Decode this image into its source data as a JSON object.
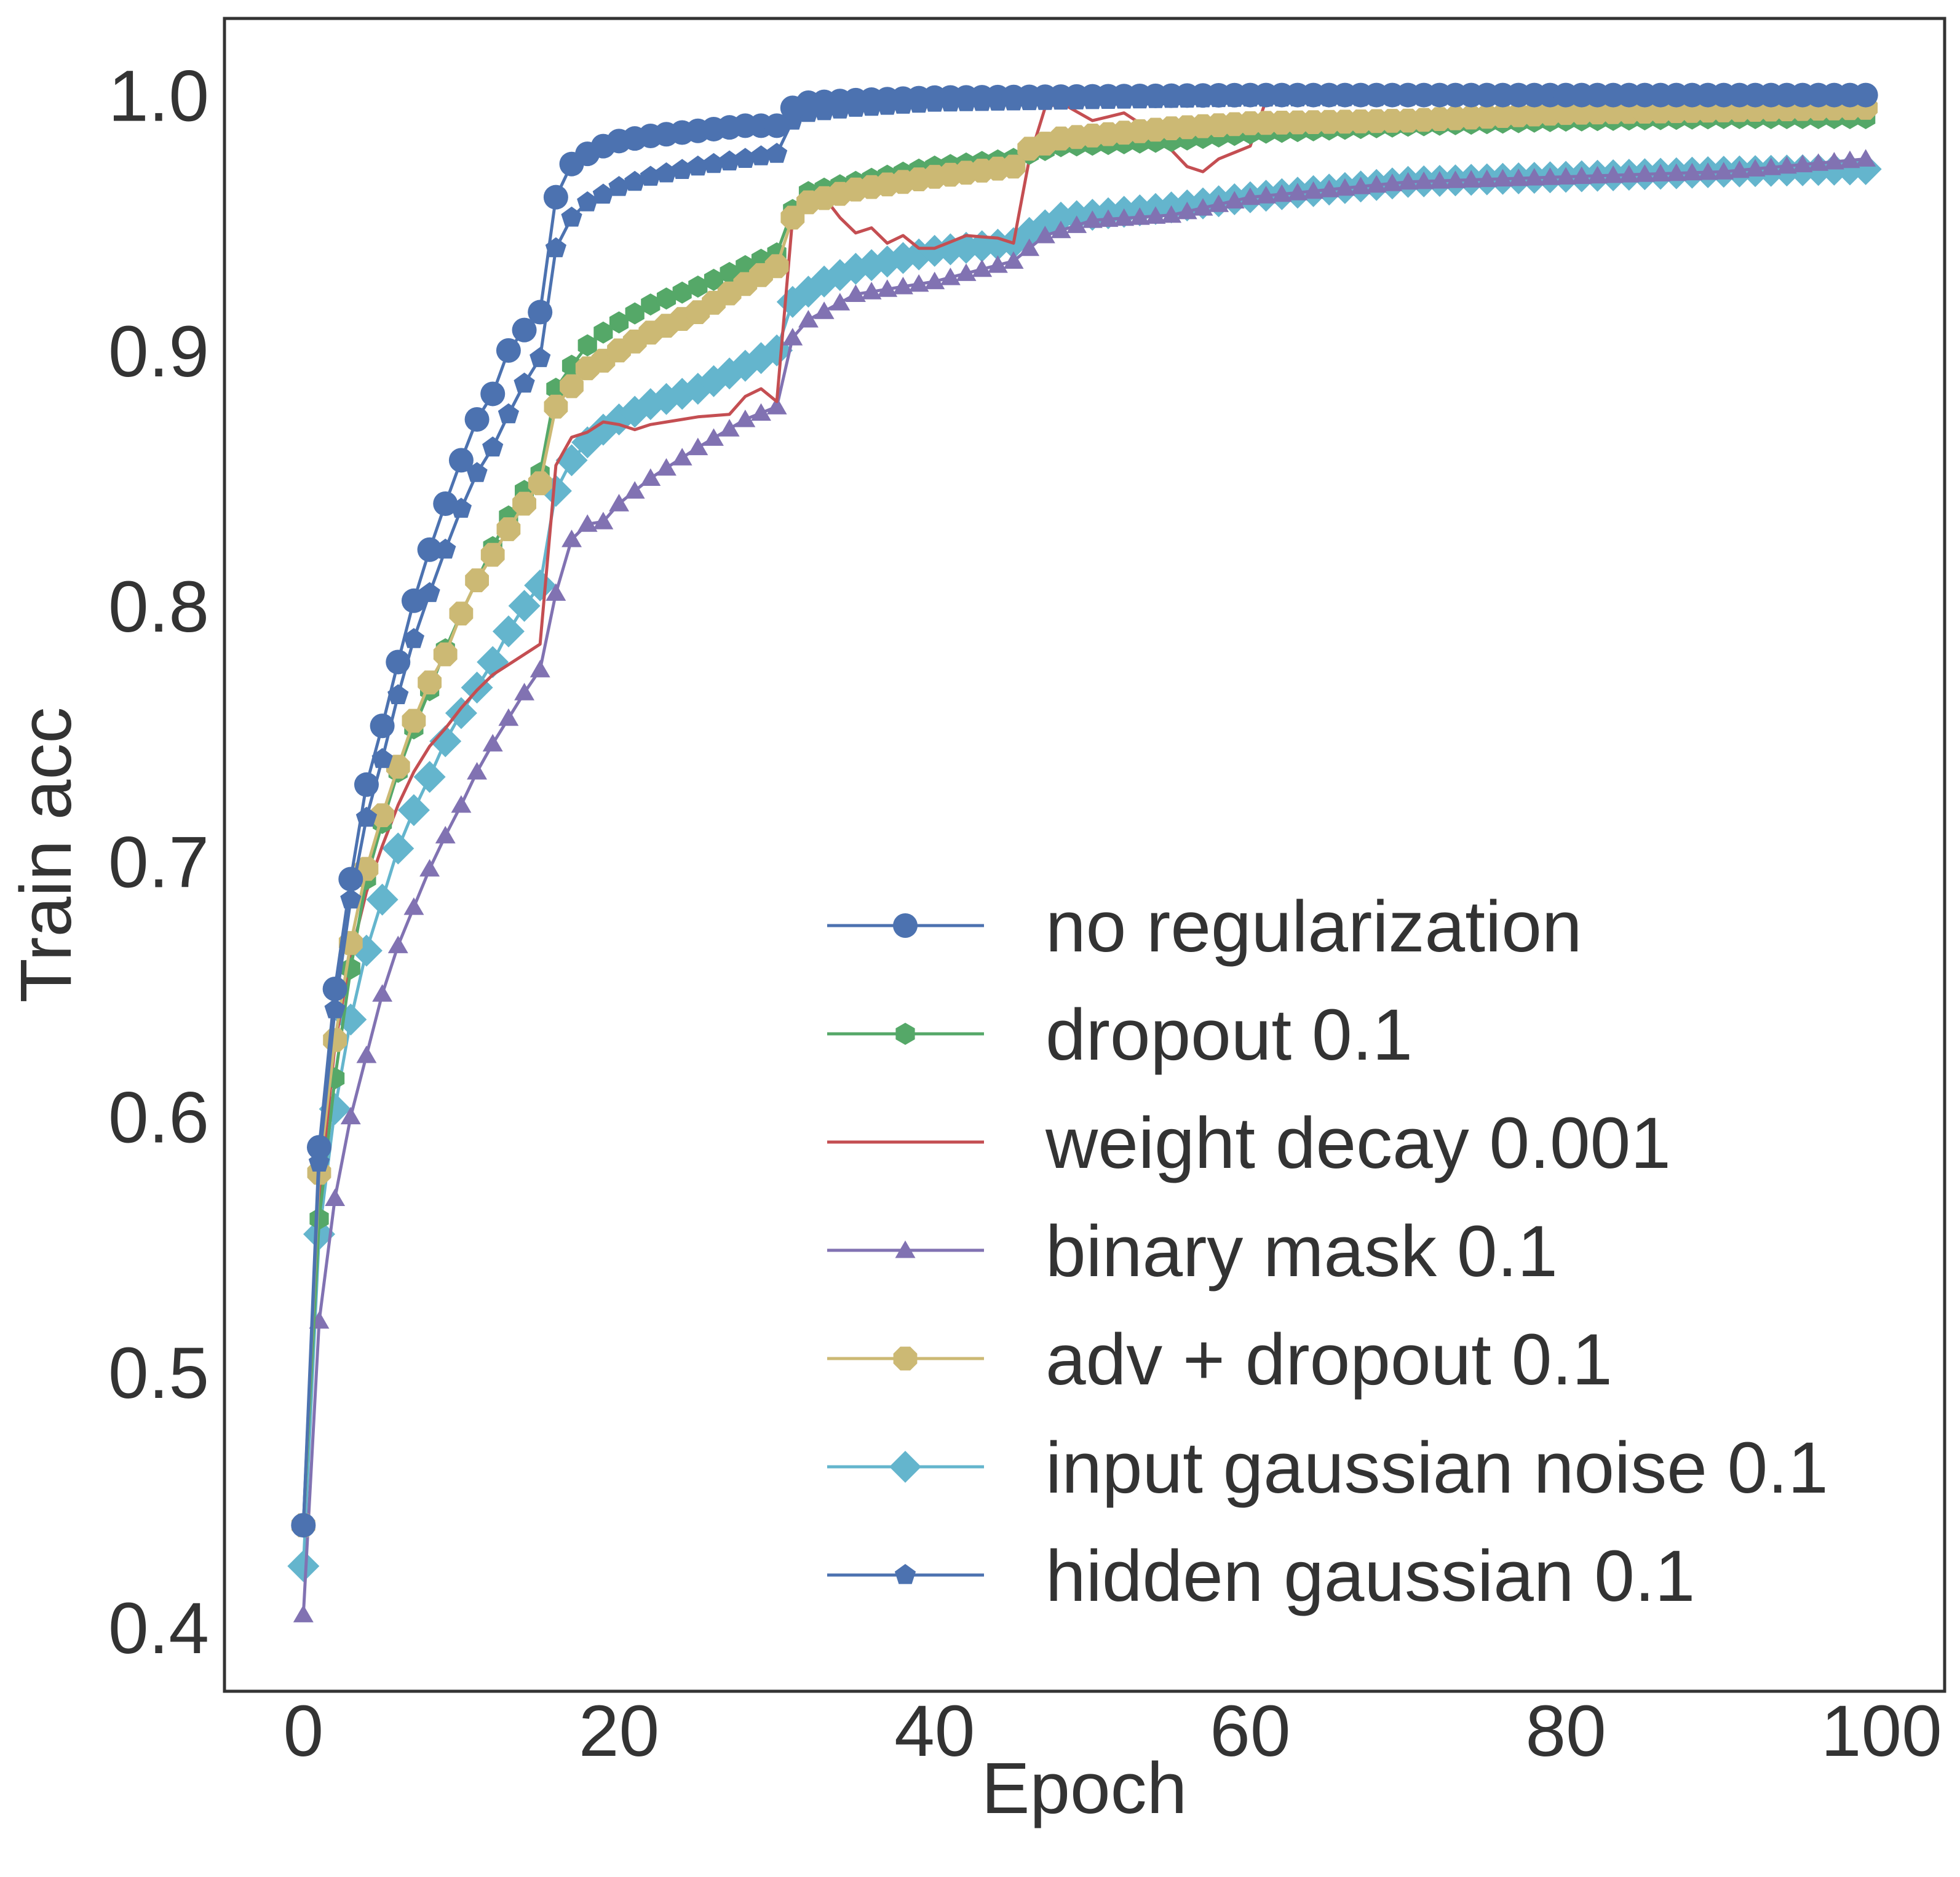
{
  "chart_data": {
    "type": "line",
    "title": "",
    "xlabel": "Epoch",
    "ylabel": "Train acc",
    "xlim": [
      -5,
      104
    ],
    "ylim": [
      0.375,
      1.03
    ],
    "xticks": [
      0,
      20,
      40,
      60,
      80,
      100
    ],
    "yticks": [
      0.4,
      0.5,
      0.6,
      0.7,
      0.8,
      0.9,
      1.0
    ],
    "xtick_labels": [
      "0",
      "20",
      "40",
      "60",
      "80",
      "100"
    ],
    "ytick_labels": [
      "0.4",
      "0.5",
      "0.6",
      "0.7",
      "0.8",
      "0.9",
      "1.0"
    ],
    "grid": false,
    "legend_position": "lower-right",
    "series": [
      {
        "name": "input gaussian noise 0.1",
        "color": "#64b5cd",
        "marker": "diamond",
        "key": "ign",
        "anchors": [
          [
            0,
            0.424
          ],
          [
            1,
            0.554
          ],
          [
            2,
            0.603
          ],
          [
            3,
            0.638
          ],
          [
            4,
            0.665
          ],
          [
            5,
            0.685
          ],
          [
            6,
            0.705
          ],
          [
            7,
            0.72
          ],
          [
            8,
            0.733
          ],
          [
            9,
            0.747
          ],
          [
            10,
            0.758
          ],
          [
            11,
            0.768
          ],
          [
            12,
            0.778
          ],
          [
            13,
            0.79
          ],
          [
            14,
            0.8
          ],
          [
            15,
            0.808
          ],
          [
            16,
            0.845
          ],
          [
            17,
            0.857
          ],
          [
            18,
            0.864
          ],
          [
            19,
            0.869
          ],
          [
            20,
            0.873
          ],
          [
            21,
            0.876
          ],
          [
            22,
            0.879
          ],
          [
            25,
            0.885
          ],
          [
            28,
            0.894
          ],
          [
            30,
            0.9
          ],
          [
            31,
            0.919
          ],
          [
            33,
            0.927
          ],
          [
            35,
            0.932
          ],
          [
            40,
            0.939
          ],
          [
            45,
            0.942
          ],
          [
            46,
            0.946
          ],
          [
            48,
            0.952
          ],
          [
            55,
            0.956
          ],
          [
            60,
            0.96
          ],
          [
            70,
            0.966
          ],
          [
            80,
            0.968
          ],
          [
            90,
            0.97
          ],
          [
            99,
            0.971
          ]
        ]
      },
      {
        "name": "binary mask 0.1",
        "color": "#8172b2",
        "marker": "triangle",
        "key": "bm",
        "anchors": [
          [
            0,
            0.405
          ],
          [
            1,
            0.52
          ],
          [
            2,
            0.568
          ],
          [
            3,
            0.6
          ],
          [
            4,
            0.624
          ],
          [
            5,
            0.648
          ],
          [
            6,
            0.667
          ],
          [
            7,
            0.682
          ],
          [
            8,
            0.697
          ],
          [
            9,
            0.71
          ],
          [
            10,
            0.722
          ],
          [
            11,
            0.735
          ],
          [
            12,
            0.746
          ],
          [
            13,
            0.756
          ],
          [
            14,
            0.766
          ],
          [
            15,
            0.775
          ],
          [
            16,
            0.805
          ],
          [
            17,
            0.826
          ],
          [
            18,
            0.832
          ],
          [
            19,
            0.833
          ],
          [
            20,
            0.84
          ],
          [
            22,
            0.85
          ],
          [
            25,
            0.862
          ],
          [
            28,
            0.873
          ],
          [
            30,
            0.878
          ],
          [
            31,
            0.905
          ],
          [
            32,
            0.912
          ],
          [
            35,
            0.922
          ],
          [
            40,
            0.927
          ],
          [
            45,
            0.935
          ],
          [
            47,
            0.945
          ],
          [
            50,
            0.951
          ],
          [
            55,
            0.953
          ],
          [
            60,
            0.96
          ],
          [
            70,
            0.966
          ],
          [
            80,
            0.968
          ],
          [
            90,
            0.97
          ],
          [
            99,
            0.975
          ]
        ]
      },
      {
        "name": "weight decay 0.001",
        "color": "#c44e52",
        "marker": "none",
        "key": "wd",
        "anchors": [
          [
            0,
            0.44
          ],
          [
            1,
            0.568
          ],
          [
            2,
            0.628
          ],
          [
            3,
            0.663
          ],
          [
            4,
            0.688
          ],
          [
            5,
            0.706
          ],
          [
            6,
            0.722
          ],
          [
            7,
            0.735
          ],
          [
            8,
            0.745
          ],
          [
            9,
            0.752
          ],
          [
            10,
            0.76
          ],
          [
            11,
            0.767
          ],
          [
            12,
            0.773
          ],
          [
            13,
            0.777
          ],
          [
            14,
            0.781
          ],
          [
            15,
            0.785
          ],
          [
            16,
            0.855
          ],
          [
            17,
            0.866
          ],
          [
            18,
            0.868
          ],
          [
            19,
            0.872
          ],
          [
            20,
            0.871
          ],
          [
            21,
            0.869
          ],
          [
            22,
            0.871
          ],
          [
            25,
            0.874
          ],
          [
            27,
            0.875
          ],
          [
            28,
            0.882
          ],
          [
            29,
            0.885
          ],
          [
            30,
            0.88
          ],
          [
            31,
            0.952
          ],
          [
            32,
            0.962
          ],
          [
            33,
            0.96
          ],
          [
            34,
            0.952
          ],
          [
            35,
            0.946
          ],
          [
            36,
            0.948
          ],
          [
            37,
            0.942
          ],
          [
            38,
            0.945
          ],
          [
            39,
            0.94
          ],
          [
            40,
            0.94
          ],
          [
            42,
            0.945
          ],
          [
            44,
            0.944
          ],
          [
            45,
            0.942
          ],
          [
            46,
            0.975
          ],
          [
            47,
            0.995
          ],
          [
            48,
            0.997
          ],
          [
            50,
            0.99
          ],
          [
            52,
            0.993
          ],
          [
            54,
            0.985
          ],
          [
            56,
            0.972
          ],
          [
            57,
            0.97
          ],
          [
            58,
            0.975
          ],
          [
            60,
            0.98
          ],
          [
            61,
            0.998
          ],
          [
            62,
            0.999
          ],
          [
            70,
            0.998
          ],
          [
            80,
            0.999
          ],
          [
            90,
            0.999
          ],
          [
            99,
            0.999
          ]
        ]
      },
      {
        "name": "dropout 0.1",
        "color": "#55a868",
        "marker": "hexagon",
        "key": "do",
        "anchors": [
          [
            0,
            0.44
          ],
          [
            1,
            0.56
          ],
          [
            2,
            0.615
          ],
          [
            3,
            0.658
          ],
          [
            4,
            0.693
          ],
          [
            5,
            0.715
          ],
          [
            6,
            0.735
          ],
          [
            7,
            0.752
          ],
          [
            8,
            0.767
          ],
          [
            9,
            0.783
          ],
          [
            10,
            0.797
          ],
          [
            11,
            0.81
          ],
          [
            12,
            0.823
          ],
          [
            13,
            0.835
          ],
          [
            14,
            0.845
          ],
          [
            15,
            0.852
          ],
          [
            16,
            0.885
          ],
          [
            17,
            0.894
          ],
          [
            18,
            0.902
          ],
          [
            19,
            0.907
          ],
          [
            20,
            0.911
          ],
          [
            22,
            0.918
          ],
          [
            25,
            0.925
          ],
          [
            28,
            0.933
          ],
          [
            30,
            0.938
          ],
          [
            31,
            0.955
          ],
          [
            32,
            0.962
          ],
          [
            35,
            0.966
          ],
          [
            40,
            0.972
          ],
          [
            45,
            0.975
          ],
          [
            46,
            0.977
          ],
          [
            48,
            0.98
          ],
          [
            55,
            0.982
          ],
          [
            60,
            0.985
          ],
          [
            70,
            0.988
          ],
          [
            80,
            0.99
          ],
          [
            90,
            0.991
          ],
          [
            99,
            0.991
          ]
        ]
      },
      {
        "name": "adv + dropout 0.1",
        "color": "#ccb974",
        "marker": "octagon",
        "key": "adv",
        "anchors": [
          [
            0,
            0.44
          ],
          [
            1,
            0.578
          ],
          [
            2,
            0.63
          ],
          [
            3,
            0.668
          ],
          [
            4,
            0.697
          ],
          [
            5,
            0.718
          ],
          [
            6,
            0.737
          ],
          [
            7,
            0.755
          ],
          [
            8,
            0.77
          ],
          [
            9,
            0.781
          ],
          [
            10,
            0.797
          ],
          [
            11,
            0.81
          ],
          [
            12,
            0.82
          ],
          [
            13,
            0.83
          ],
          [
            14,
            0.84
          ],
          [
            15,
            0.848
          ],
          [
            16,
            0.878
          ],
          [
            17,
            0.886
          ],
          [
            18,
            0.893
          ],
          [
            19,
            0.896
          ],
          [
            20,
            0.9
          ],
          [
            22,
            0.907
          ],
          [
            25,
            0.915
          ],
          [
            28,
            0.926
          ],
          [
            30,
            0.933
          ],
          [
            31,
            0.952
          ],
          [
            32,
            0.958
          ],
          [
            35,
            0.963
          ],
          [
            40,
            0.968
          ],
          [
            45,
            0.972
          ],
          [
            46,
            0.979
          ],
          [
            48,
            0.983
          ],
          [
            55,
            0.987
          ],
          [
            60,
            0.989
          ],
          [
            70,
            0.99
          ],
          [
            80,
            0.993
          ],
          [
            90,
            0.994
          ],
          [
            99,
            0.995
          ]
        ]
      },
      {
        "name": "hidden gaussian 0.1",
        "color": "#4c72b0",
        "marker": "pentagon",
        "key": "hg",
        "anchors": [
          [
            0,
            0.44
          ],
          [
            1,
            0.582
          ],
          [
            2,
            0.642
          ],
          [
            3,
            0.685
          ],
          [
            4,
            0.717
          ],
          [
            5,
            0.74
          ],
          [
            6,
            0.765
          ],
          [
            7,
            0.787
          ],
          [
            8,
            0.805
          ],
          [
            9,
            0.822
          ],
          [
            10,
            0.838
          ],
          [
            11,
            0.852
          ],
          [
            12,
            0.862
          ],
          [
            13,
            0.875
          ],
          [
            14,
            0.887
          ],
          [
            15,
            0.897
          ],
          [
            16,
            0.94
          ],
          [
            17,
            0.952
          ],
          [
            18,
            0.958
          ],
          [
            19,
            0.961
          ],
          [
            20,
            0.964
          ],
          [
            22,
            0.968
          ],
          [
            25,
            0.972
          ],
          [
            28,
            0.975
          ],
          [
            30,
            0.977
          ],
          [
            31,
            0.99
          ],
          [
            32,
            0.993
          ],
          [
            35,
            0.995
          ],
          [
            40,
            0.997
          ],
          [
            50,
            0.998
          ],
          [
            60,
            0.999
          ],
          [
            99,
            1.0
          ]
        ]
      },
      {
        "name": "no regularization",
        "color": "#4c72b0",
        "marker": "circle",
        "key": "nr",
        "anchors": [
          [
            0,
            0.44
          ],
          [
            1,
            0.588
          ],
          [
            2,
            0.65
          ],
          [
            3,
            0.693
          ],
          [
            4,
            0.73
          ],
          [
            5,
            0.753
          ],
          [
            6,
            0.778
          ],
          [
            7,
            0.802
          ],
          [
            8,
            0.822
          ],
          [
            9,
            0.84
          ],
          [
            10,
            0.857
          ],
          [
            11,
            0.873
          ],
          [
            12,
            0.883
          ],
          [
            13,
            0.9
          ],
          [
            14,
            0.908
          ],
          [
            15,
            0.915
          ],
          [
            16,
            0.96
          ],
          [
            17,
            0.973
          ],
          [
            18,
            0.977
          ],
          [
            19,
            0.98
          ],
          [
            20,
            0.982
          ],
          [
            22,
            0.984
          ],
          [
            25,
            0.986
          ],
          [
            28,
            0.988
          ],
          [
            30,
            0.988
          ],
          [
            31,
            0.995
          ],
          [
            32,
            0.997
          ],
          [
            35,
            0.998
          ],
          [
            40,
            0.999
          ],
          [
            60,
            1.0
          ],
          [
            99,
            1.0
          ]
        ]
      }
    ]
  },
  "legend": {
    "items": [
      {
        "label": "no regularization",
        "color": "#4c72b0",
        "marker": "circle"
      },
      {
        "label": "dropout 0.1",
        "color": "#55a868",
        "marker": "hexagon"
      },
      {
        "label": "weight decay 0.001",
        "color": "#c44e52",
        "marker": "none"
      },
      {
        "label": "binary mask 0.1",
        "color": "#8172b2",
        "marker": "triangle"
      },
      {
        "label": "adv + dropout 0.1",
        "color": "#ccb974",
        "marker": "octagon"
      },
      {
        "label": "input gaussian noise 0.1",
        "color": "#64b5cd",
        "marker": "diamond"
      },
      {
        "label": "hidden gaussian 0.1",
        "color": "#4c72b0",
        "marker": "pentagon"
      }
    ]
  }
}
